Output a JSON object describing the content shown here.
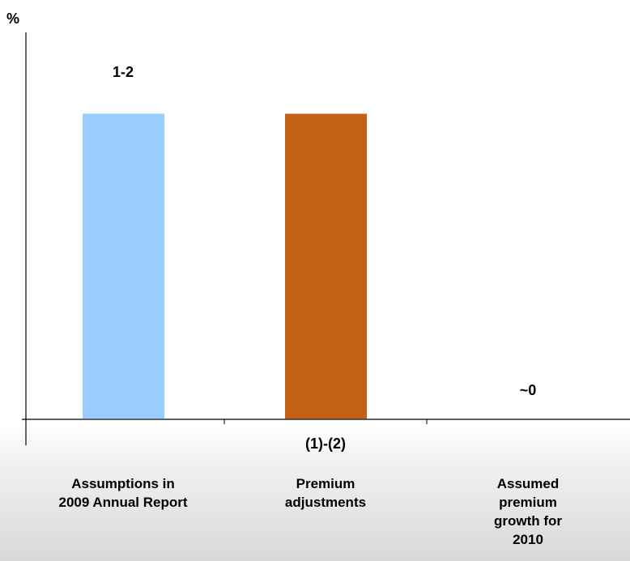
{
  "chart_data": {
    "type": "waterfall",
    "y_label": "%",
    "categories": [
      "Assumptions in 2009 Annual Report",
      "Premium adjustments",
      "Assumed premium growth for 2010"
    ],
    "values": [
      1.5,
      -1.5,
      0
    ],
    "value_labels": [
      "1-2",
      "(1)-(2)",
      "~0"
    ],
    "colors": [
      "#99ccff",
      "#c46016",
      "#808080"
    ],
    "ylim": [
      -0.13,
      1.9
    ]
  }
}
